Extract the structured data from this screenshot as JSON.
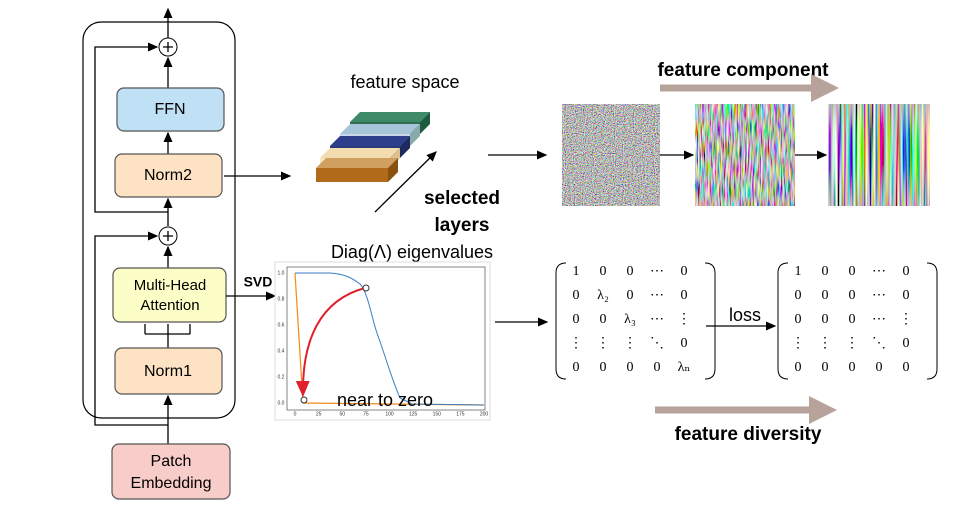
{
  "encoder": {
    "ffn": "FFN",
    "norm2": "Norm2",
    "attention": [
      "Multi-Head",
      "Attention"
    ],
    "norm1": "Norm1",
    "embedding": [
      "Patch",
      "Embedding"
    ]
  },
  "feature_space": "feature space",
  "selected_layers": [
    "selected",
    "layers"
  ],
  "feature_component": "feature component",
  "svd": "SVD",
  "eigen_title": "Diag(Λ) eigenvalues",
  "plot": {
    "y_ticks": [
      "1.0",
      "0.8",
      "0.6",
      "0.4",
      "0.2",
      "0.0"
    ],
    "x_ticks": [
      "0",
      "25",
      "50",
      "75",
      "100",
      "125",
      "150",
      "175",
      "200"
    ],
    "annotation": "near to zero"
  },
  "loss": "loss",
  "feature_diversity": "feature diversity",
  "matrix_before": [
    [
      "1",
      "0",
      "0",
      "⋯",
      "0"
    ],
    [
      "0",
      "λ₂",
      "0",
      "⋯",
      "0"
    ],
    [
      "0",
      "0",
      "λ₃",
      "⋯",
      "⋮"
    ],
    [
      "⋮",
      "⋮",
      "⋮",
      "⋱",
      "0"
    ],
    [
      "0",
      "0",
      "0",
      "0",
      "λₙ"
    ]
  ],
  "matrix_after": [
    [
      "1",
      "0",
      "0",
      "⋯",
      "0"
    ],
    [
      "0",
      "0",
      "0",
      "⋯",
      "0"
    ],
    [
      "0",
      "0",
      "0",
      "⋯",
      "⋮"
    ],
    [
      "⋮",
      "⋮",
      "⋮",
      "⋱",
      "0"
    ],
    [
      "0",
      "0",
      "0",
      "0",
      "0"
    ]
  ]
}
